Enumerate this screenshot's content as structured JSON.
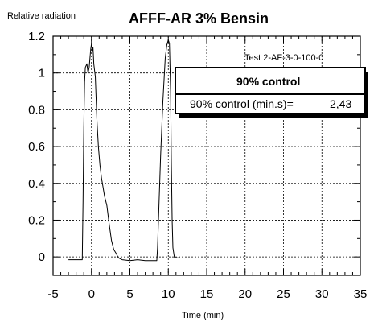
{
  "chart_data": {
    "type": "line",
    "title": "AFFF-AR 3% Bensin",
    "ylabel": "Relative radiation",
    "xlabel": "Time (min)",
    "test_label": "Test 2-AF-3-0-100-0",
    "xlim": [
      -5,
      35
    ],
    "ylim": [
      -0.1,
      1.2
    ],
    "x_ticks": [
      -5,
      0,
      5,
      10,
      15,
      20,
      25,
      30,
      35
    ],
    "y_ticks": [
      0,
      0.2,
      0.4,
      0.6,
      0.8,
      1,
      1.2
    ],
    "x_tick_labels": [
      "-5",
      "0",
      "5",
      "10",
      "15",
      "20",
      "25",
      "30",
      "35"
    ],
    "y_tick_labels": [
      "0",
      "0.2",
      "0.4",
      "0.6",
      "0.8",
      "1",
      "1.2"
    ],
    "grid": true,
    "series": [
      {
        "color": "#000000",
        "points": [
          [
            -3,
            -0.015
          ],
          [
            -1.2,
            -0.015
          ],
          [
            -1.1,
            0.3
          ],
          [
            -1.0,
            0.7
          ],
          [
            -0.9,
            0.95
          ],
          [
            -0.8,
            1.03
          ],
          [
            -0.6,
            1.05
          ],
          [
            -0.45,
            1.0
          ],
          [
            -0.3,
            1.03
          ],
          [
            -0.2,
            1.08
          ],
          [
            -0.1,
            1.13
          ],
          [
            0.0,
            1.16
          ],
          [
            0.1,
            1.12
          ],
          [
            0.2,
            1.14
          ],
          [
            0.3,
            1.05
          ],
          [
            0.5,
            0.98
          ],
          [
            0.7,
            0.75
          ],
          [
            0.9,
            0.6
          ],
          [
            1.1,
            0.5
          ],
          [
            1.3,
            0.43
          ],
          [
            1.5,
            0.38
          ],
          [
            1.7,
            0.33
          ],
          [
            2.0,
            0.28
          ],
          [
            2.3,
            0.18
          ],
          [
            2.6,
            0.09
          ],
          [
            2.9,
            0.04
          ],
          [
            3.2,
            0.02
          ],
          [
            3.5,
            -0.005
          ],
          [
            4.0,
            -0.015
          ],
          [
            5.0,
            -0.02
          ],
          [
            6.0,
            -0.015
          ],
          [
            7.0,
            -0.02
          ],
          [
            8.5,
            -0.02
          ],
          [
            8.6,
            0.05
          ],
          [
            8.8,
            0.3
          ],
          [
            9.0,
            0.55
          ],
          [
            9.3,
            0.85
          ],
          [
            9.6,
            1.08
          ],
          [
            9.8,
            1.15
          ],
          [
            10.0,
            1.18
          ],
          [
            10.15,
            1.16
          ],
          [
            10.3,
            0.9
          ],
          [
            10.4,
            0.5
          ],
          [
            10.5,
            0.2
          ],
          [
            10.6,
            0.05
          ],
          [
            10.8,
            -0.005
          ],
          [
            11.5,
            -0.005
          ]
        ]
      }
    ]
  },
  "control_box": {
    "header": "90% control",
    "label": "90% control (min.s)=",
    "value": "2,43"
  }
}
